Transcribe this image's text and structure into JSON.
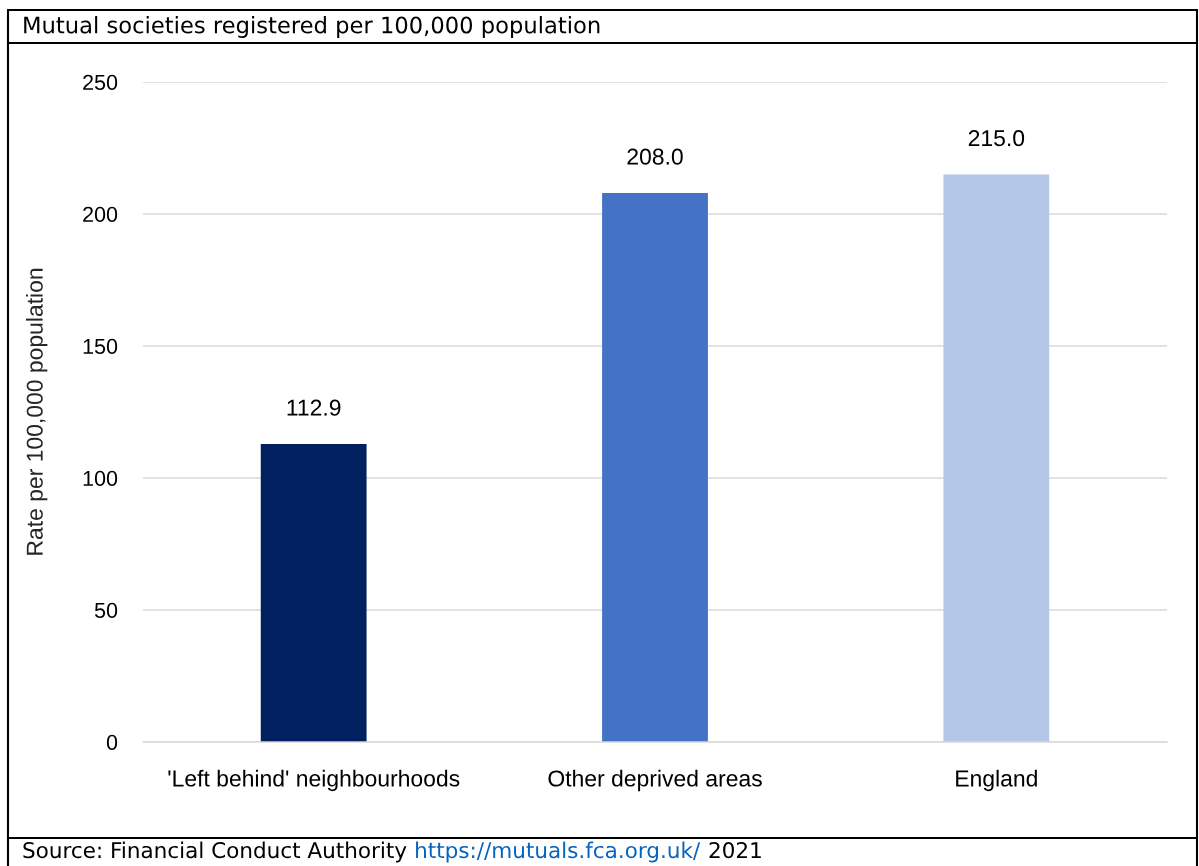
{
  "chart_data": {
    "type": "bar",
    "title": "Mutual societies registered per 100,000 population",
    "ylabel": "Rate per 100,000 population",
    "categories": [
      "'Left behind' neighbourhoods",
      "Other deprived areas",
      "England"
    ],
    "values": [
      112.9,
      208.0,
      215.0
    ],
    "value_labels": [
      "112.9",
      "208.0",
      "215.0"
    ],
    "colors": [
      "#002060",
      "#4472c4",
      "#b4c7e7"
    ],
    "ylim": [
      0,
      250
    ],
    "yticks": [
      0,
      50,
      100,
      150,
      200,
      250
    ],
    "grid": "y",
    "legend": false,
    "annotations": [
      "Source: Financial Conduct Authority",
      "https://mutuals.fca.org.uk/",
      "2021"
    ]
  }
}
